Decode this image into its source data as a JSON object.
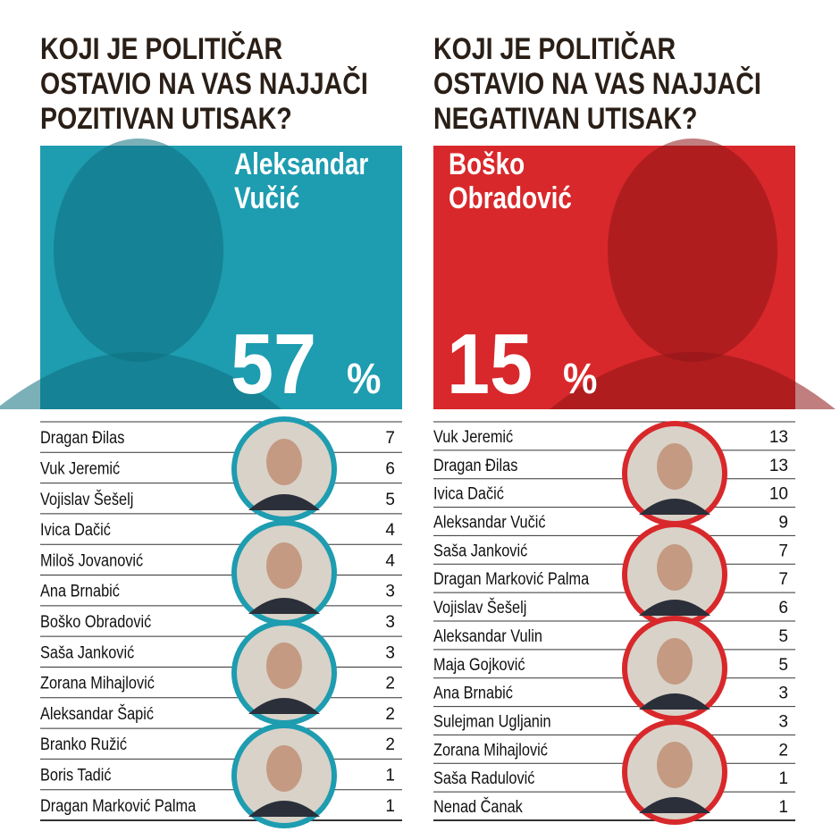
{
  "panels": [
    {
      "title": [
        "KOJI JE POLITIČAR",
        "OSTAVIO NA VAS NAJJAČI",
        "POZITIVAN UTISAK?"
      ],
      "leader": {
        "name": [
          "Aleksandar",
          "Vučić"
        ],
        "percent": "57",
        "unit": "%"
      },
      "rows": [
        {
          "name": "Dragan Đilas",
          "value": "7"
        },
        {
          "name": "Vuk Jeremić",
          "value": "6"
        },
        {
          "name": "Vojislav Šešelj",
          "value": "5"
        },
        {
          "name": "Ivica Dačić",
          "value": "4"
        },
        {
          "name": "Miloš Jovanović",
          "value": "4"
        },
        {
          "name": "Ana Brnabić",
          "value": "3"
        },
        {
          "name": "Boško Obradović",
          "value": "3"
        },
        {
          "name": "Saša Janković",
          "value": "3"
        },
        {
          "name": "Zorana Mihajlović",
          "value": "2"
        },
        {
          "name": "Aleksandar Šapić",
          "value": "2"
        },
        {
          "name": "Branko Ružić",
          "value": "2"
        },
        {
          "name": "Boris Tadić",
          "value": "1"
        },
        {
          "name": "Dragan Marković Palma",
          "value": "1"
        }
      ]
    },
    {
      "title": [
        "KOJI JE POLITIČAR",
        "OSTAVIO NA VAS NAJJAČI",
        "NEGATIVAN UTISAK?"
      ],
      "leader": {
        "name": [
          "Boško",
          "Obradović"
        ],
        "percent": "15",
        "unit": "%"
      },
      "rows": [
        {
          "name": "Vuk Jeremić",
          "value": "13"
        },
        {
          "name": "Dragan Đilas",
          "value": "13"
        },
        {
          "name": "Ivica Dačić",
          "value": "10"
        },
        {
          "name": "Aleksandar Vučić",
          "value": "9"
        },
        {
          "name": "Saša Janković",
          "value": "7"
        },
        {
          "name": "Dragan Marković Palma",
          "value": "7"
        },
        {
          "name": "Vojislav Šešelj",
          "value": "6"
        },
        {
          "name": "Aleksandar Vulin",
          "value": "5"
        },
        {
          "name": "Maja Gojković",
          "value": "5"
        },
        {
          "name": "Ana Brnabić",
          "value": "3"
        },
        {
          "name": "Sulejman Ugljanin",
          "value": "3"
        },
        {
          "name": "Zorana Mihajlović",
          "value": "2"
        },
        {
          "name": "Saša Radulović",
          "value": "1"
        },
        {
          "name": "Nenad Čanak",
          "value": "1"
        }
      ]
    }
  ]
}
